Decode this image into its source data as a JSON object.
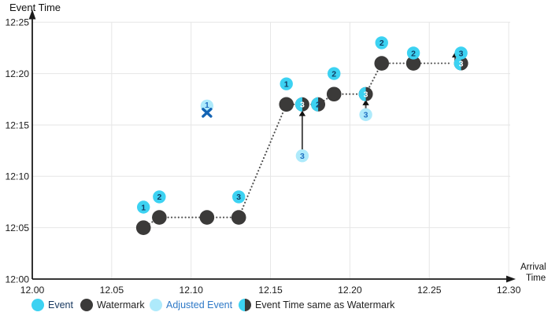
{
  "titles": {
    "y_axis": "Event Time",
    "x_axis_line1": "Arrival",
    "x_axis_line2": "Time"
  },
  "colors": {
    "event": "#3cd2f2",
    "watermark": "#3b3a39",
    "adjusted": "#aeeafb",
    "number_navy": "#103c63",
    "number_adjusted": "#1f6fc2",
    "x_mark": "#1464b4",
    "grid": "#e6e6e6",
    "axis": "#1a1a1a",
    "dotted_line": "#4d4d4d",
    "legend_event_text": "#15365e",
    "legend_dark_text": "#1f1f1f",
    "legend_adjusted_text": "#2e79c7"
  },
  "legend": {
    "items": [
      {
        "label": "Event",
        "type": "event",
        "text_color": "#15365e"
      },
      {
        "label": "Watermark",
        "type": "watermark",
        "text_color": "#1f1f1f"
      },
      {
        "label": "Adjusted Event",
        "type": "adjusted",
        "text_color": "#2e79c7"
      },
      {
        "label": "Event Time same as Watermark",
        "type": "half",
        "text_color": "#1f1f1f"
      }
    ]
  },
  "chart_data": {
    "type": "scatter",
    "x_axis": {
      "label": "Arrival Time",
      "ticks": [
        "12.00",
        "12.05",
        "12.10",
        "12.15",
        "12.20",
        "12.25",
        "12.30"
      ],
      "range": [
        12.0,
        12.3
      ]
    },
    "y_axis": {
      "label": "Event Time",
      "ticks": [
        "12:00",
        "12:05",
        "12:10",
        "12:15",
        "12:20",
        "12:25"
      ],
      "range": [
        "12:00",
        "12:25"
      ]
    },
    "grid": true,
    "legend_position": "bottom",
    "series": [
      {
        "name": "Event",
        "marker": "event",
        "points": [
          {
            "label": "1",
            "arrival": 12.07,
            "event_time": "12:07"
          },
          {
            "label": "2",
            "arrival": 12.08,
            "event_time": "12:08"
          },
          {
            "label": "3",
            "arrival": 12.13,
            "event_time": "12:08"
          },
          {
            "label": "1",
            "arrival": 12.16,
            "event_time": "12:19"
          },
          {
            "label": "2",
            "arrival": 12.19,
            "event_time": "12:20"
          },
          {
            "label": "2",
            "arrival": 12.22,
            "event_time": "12:23"
          },
          {
            "label": "2",
            "arrival": 12.24,
            "event_time": "12:22"
          },
          {
            "label": "3",
            "arrival": 12.27,
            "event_time": "12:22"
          }
        ]
      },
      {
        "name": "Watermark",
        "marker": "watermark",
        "points": [
          {
            "arrival": 12.07,
            "event_time": "12:05"
          },
          {
            "arrival": 12.08,
            "event_time": "12:06"
          },
          {
            "arrival": 12.11,
            "event_time": "12:06"
          },
          {
            "arrival": 12.13,
            "event_time": "12:06"
          },
          {
            "arrival": 12.16,
            "event_time": "12:17"
          },
          {
            "arrival": 12.19,
            "event_time": "12:18"
          },
          {
            "arrival": 12.22,
            "event_time": "12:21"
          },
          {
            "arrival": 12.24,
            "event_time": "12:21"
          }
        ]
      },
      {
        "name": "Adjusted Event",
        "marker": "adjusted",
        "points": [
          {
            "label": "3",
            "arrival": 12.17,
            "event_time": "12:12"
          },
          {
            "label": "3",
            "arrival": 12.21,
            "event_time": "12:16"
          }
        ]
      },
      {
        "name": "Event Time same as Watermark",
        "marker": "half",
        "points": [
          {
            "label": "3",
            "arrival": 12.17,
            "event_time": "12:17",
            "number_style": "white"
          },
          {
            "label": "2",
            "arrival": 12.18,
            "event_time": "12:17",
            "number_style": "dark"
          },
          {
            "label": "3",
            "arrival": 12.21,
            "event_time": "12:18",
            "number_style": "white"
          },
          {
            "label": "3",
            "arrival": 12.27,
            "event_time": "12:21",
            "number_style": "white"
          }
        ]
      }
    ],
    "dropped_event": {
      "label": "1",
      "arrival": 12.11,
      "event_time": "12:17",
      "marker": "adjusted-with-x"
    },
    "watermark_path": [
      [
        12.07,
        "12:05"
      ],
      [
        12.08,
        "12:06"
      ],
      [
        12.13,
        "12:06"
      ],
      [
        12.16,
        "12:17"
      ],
      [
        12.18,
        "12:17"
      ],
      [
        12.19,
        "12:18"
      ],
      [
        12.21,
        "12:18"
      ],
      [
        12.22,
        "12:21"
      ],
      [
        12.24,
        "12:21"
      ],
      [
        12.264,
        "12:21"
      ]
    ],
    "adjustment_arrows": [
      {
        "arrival": 12.17,
        "from_minute": 12.45,
        "to_minute": 16.4
      },
      {
        "arrival": 12.21,
        "from_minute": 16.55,
        "to_minute": 17.45
      },
      {
        "arrival": 12.2663,
        "from_minute": 21.05,
        "to_minute": 22.1
      }
    ]
  }
}
